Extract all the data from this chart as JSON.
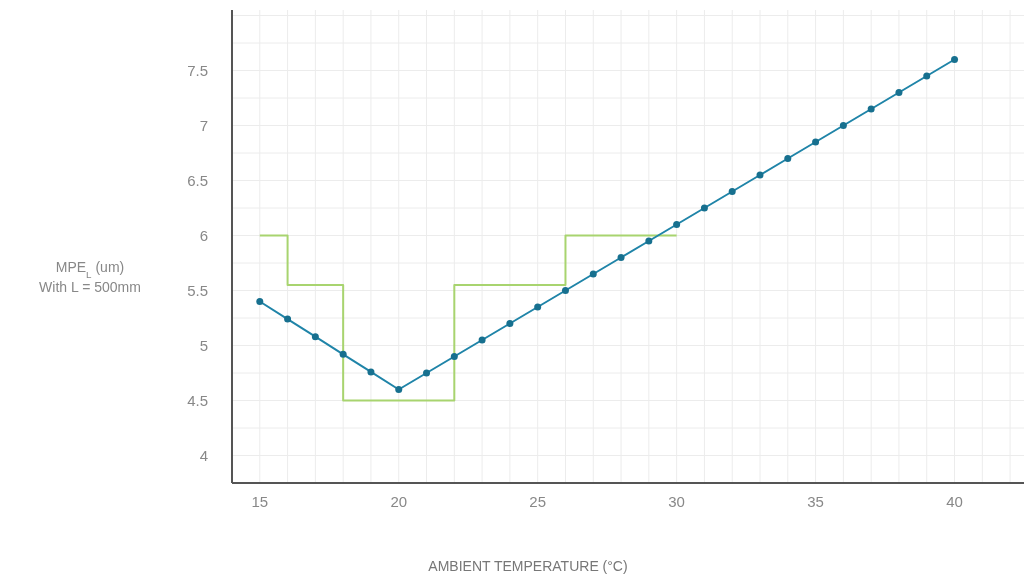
{
  "chart_data": {
    "type": "line",
    "xlabel": "AMBIENT TEMPERATURE (°C)",
    "ylabel": "MPE$_{L}$ (um)\nWith L = 500mm",
    "xlim": [
      14,
      42.5
    ],
    "ylim": [
      3.75,
      8.05
    ],
    "xticks": [
      15,
      20,
      25,
      30,
      35,
      40
    ],
    "yticks": [
      4,
      4.5,
      5,
      5.5,
      6,
      6.5,
      7,
      7.5
    ],
    "grid": true,
    "series": [
      {
        "type": "step",
        "color": "#a8d46f",
        "marker": "none",
        "x": [
          15,
          16,
          18,
          22,
          26,
          30
        ],
        "values": [
          6,
          5.55,
          4.5,
          5.55,
          6,
          6
        ]
      },
      {
        "color": "#1f84a8",
        "marker": "circle",
        "x": [
          15,
          16,
          17,
          18,
          19,
          20,
          21,
          22,
          23,
          24,
          25,
          26,
          27,
          28,
          29,
          30,
          31,
          32,
          33,
          34,
          35,
          36,
          37,
          38,
          39,
          40
        ],
        "values": [
          5.4,
          5.24,
          5.08,
          4.92,
          4.76,
          4.6,
          4.75,
          4.9,
          5.05,
          5.2,
          5.35,
          5.5,
          5.65,
          5.8,
          5.95,
          6.1,
          6.25,
          6.4,
          6.55,
          6.7,
          6.85,
          7,
          7.15,
          7.3,
          7.45,
          7.6
        ]
      }
    ]
  }
}
